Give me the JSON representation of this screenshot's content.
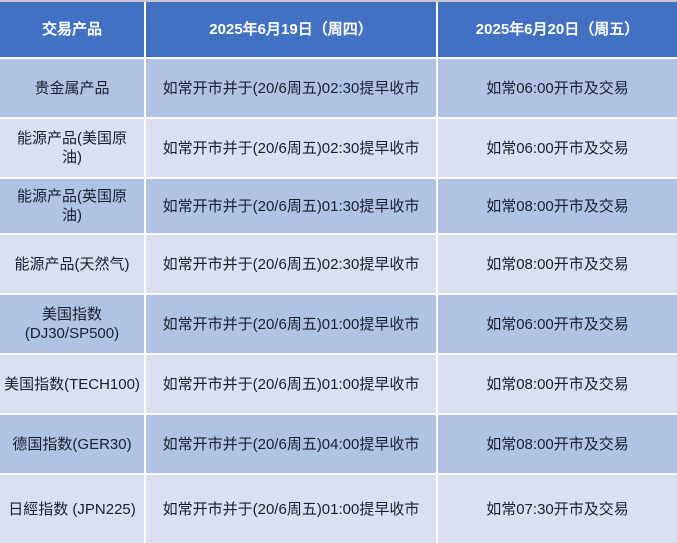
{
  "colors": {
    "header_bg": "#4271c4",
    "row_dark": "#b0c3e4",
    "row_light": "#dae0f2",
    "grid_line": "#ffffff",
    "header_text": "#ffffff",
    "body_text": "#1a1f2e",
    "top_edge": "#c6c6c6"
  },
  "table": {
    "headers": {
      "product": "交易产品",
      "jun19": "2025年6月19日（周四）",
      "jun20": "2025年6月20日（周五）"
    },
    "rows": [
      {
        "product": "贵金属产品",
        "jun19": "如常开市并于(20/6周五)02:30提早收市",
        "jun20": "如常06:00开市及交易"
      },
      {
        "product": "能源产品(美国原油)",
        "jun19": "如常开市并于(20/6周五)02:30提早收市",
        "jun20": "如常06:00开市及交易"
      },
      {
        "product": "能源产品(英国原油)",
        "jun19": "如常开市并于(20/6周五)01:30提早收市",
        "jun20": "如常08:00开市及交易"
      },
      {
        "product": "能源产品(天然气)",
        "jun19": "如常开市并于(20/6周五)02:30提早收市",
        "jun20": "如常08:00开市及交易"
      },
      {
        "product": "美国指数(DJ30/SP500)",
        "jun19": "如常开市并于(20/6周五)01:00提早收市",
        "jun20": "如常06:00开市及交易"
      },
      {
        "product": "美国指数(TECH100)",
        "jun19": "如常开市并于(20/6周五)01:00提早收市",
        "jun20": "如常08:00开市及交易"
      },
      {
        "product": "德国指数(GER30)",
        "jun19": "如常开市并于(20/6周五)04:00提早收市",
        "jun20": "如常08:00开市及交易"
      },
      {
        "product": "日經指数 (JPN225)",
        "jun19": "如常开市并于(20/6周五)01:00提早收市",
        "jun20": "如常07:30开市及交易"
      }
    ]
  }
}
